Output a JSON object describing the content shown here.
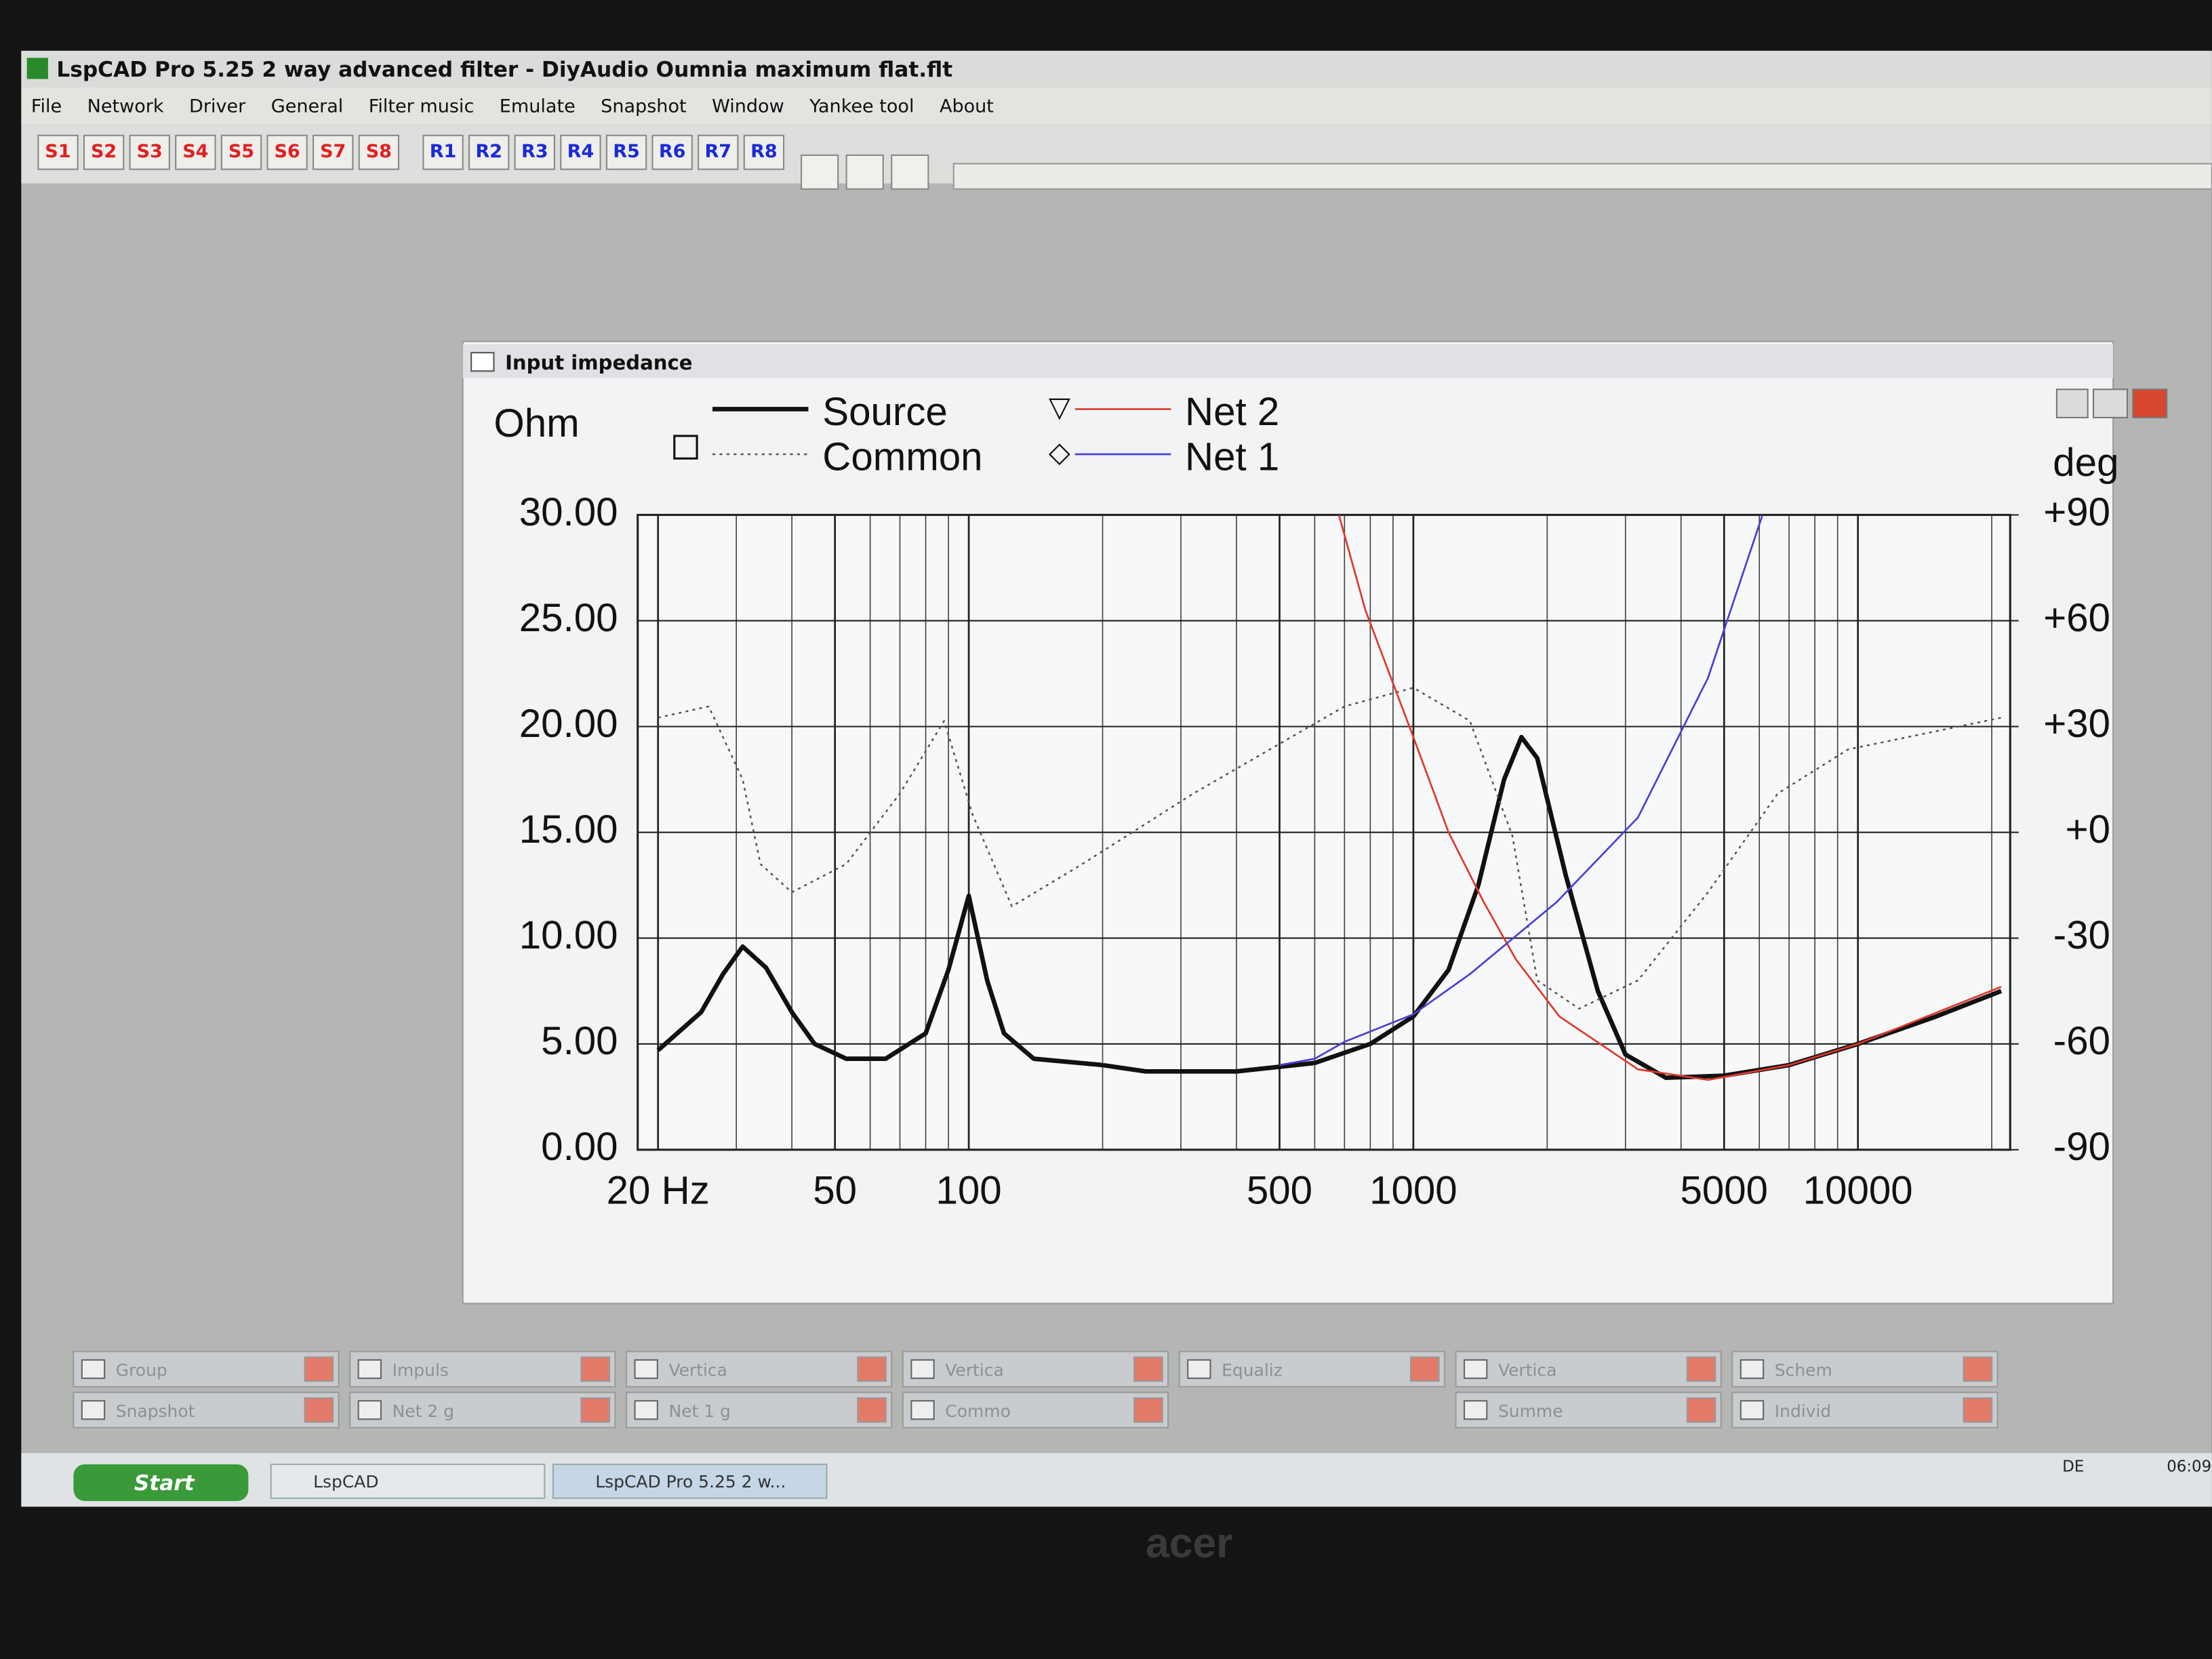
{
  "window": {
    "title": "LspCAD Pro 5.25 2 way advanced filter - DiyAudio Oumnia maximum flat.flt",
    "menu": [
      "File",
      "Network",
      "Driver",
      "General",
      "Filter music",
      "Emulate",
      "Snapshot",
      "Window",
      "Yankee tool",
      "About"
    ],
    "toolbar_s": [
      "S1",
      "S2",
      "S3",
      "S4",
      "S5",
      "S6",
      "S7",
      "S8"
    ],
    "toolbar_r": [
      "R1",
      "R2",
      "R3",
      "R4",
      "R5",
      "R6",
      "R7",
      "R8"
    ]
  },
  "child_window": {
    "title": "Input impedance"
  },
  "chart_data": {
    "type": "line",
    "ylabel": "Ohm",
    "y2label": "deg",
    "log_x": true,
    "grid": true,
    "xlim": [
      18,
      22000
    ],
    "xticks": [
      {
        "value": 20,
        "label": "20 Hz"
      },
      50,
      100,
      500,
      1000,
      5000,
      10000
    ],
    "xminor": [
      30,
      40,
      60,
      70,
      80,
      90,
      200,
      300,
      400,
      600,
      700,
      800,
      900,
      2000,
      3000,
      4000,
      6000,
      7000,
      8000,
      9000,
      20000
    ],
    "ylim": [
      0,
      30
    ],
    "yticks": [
      {
        "value": 0,
        "label": "0.00"
      },
      {
        "value": 5,
        "label": "5.00"
      },
      {
        "value": 10,
        "label": "10.00"
      },
      {
        "value": 15,
        "label": "15.00"
      },
      {
        "value": 20,
        "label": "20.00"
      },
      {
        "value": 25,
        "label": "25.00"
      },
      {
        "value": 30,
        "label": "30.00"
      }
    ],
    "y2lim": [
      -90,
      90
    ],
    "y2ticks": [
      -90,
      -60,
      -30,
      {
        "value": 0,
        "label": "+0"
      },
      {
        "value": 30,
        "label": "+30"
      },
      {
        "value": 60,
        "label": "+60"
      },
      {
        "value": 90,
        "label": "+90"
      }
    ],
    "series": [
      {
        "name": "Source",
        "color": "#111111",
        "style": "thick",
        "x": [
          20,
          25,
          28,
          31,
          35,
          40,
          45,
          53,
          65,
          80,
          90,
          100,
          110,
          120,
          140,
          200,
          250,
          400,
          600,
          800,
          1000,
          1200,
          1400,
          1600,
          1750,
          1900,
          2200,
          2600,
          3000,
          3700,
          5000,
          7000,
          10000,
          15000,
          21000
        ],
        "values": [
          4.7,
          6.5,
          8.3,
          9.6,
          8.6,
          6.5,
          5.0,
          4.3,
          4.3,
          5.5,
          8.5,
          12,
          8,
          5.5,
          4.3,
          4.0,
          3.7,
          3.7,
          4.1,
          5.0,
          6.3,
          8.5,
          12.5,
          17.5,
          19.5,
          18.5,
          13,
          7.5,
          4.5,
          3.4,
          3.5,
          4.0,
          5.0,
          6.3,
          7.5
        ]
      },
      {
        "name": "Common",
        "color": "#555555",
        "style": "dotted",
        "axis": "y2",
        "x": [
          20,
          26,
          31,
          34,
          40,
          53,
          70,
          88,
          102,
          125,
          180,
          320,
          700,
          1000,
          1340,
          1670,
          1900,
          2360,
          3200,
          4600,
          6600,
          9500,
          21000
        ],
        "values": [
          32.5,
          35.7,
          15,
          -9,
          -17,
          -9,
          11,
          31.6,
          5,
          -21,
          -9,
          11,
          35.7,
          41,
          31.6,
          -1,
          -42,
          -50,
          -42,
          -17,
          11,
          23.5,
          32.5
        ]
      },
      {
        "name": "Net 2",
        "color": "#e0392b",
        "style": "solid",
        "marker": "▽",
        "x": [
          680,
          780,
          1000,
          1200,
          1440,
          1700,
          2130,
          3200,
          4600,
          7000,
          10000,
          21000
        ],
        "values": [
          30,
          25.5,
          19.5,
          15,
          11.7,
          9,
          6.3,
          3.8,
          3.3,
          4.0,
          5.0,
          7.7
        ]
      },
      {
        "name": "Net 1",
        "color": "#4a3fd8",
        "style": "solid",
        "marker": "◇",
        "x": [
          500,
          600,
          700,
          1000,
          1340,
          2100,
          3200,
          4600,
          6100
        ],
        "values": [
          4.0,
          4.3,
          5.1,
          6.4,
          8.3,
          11.7,
          15.7,
          22.3,
          30
        ]
      }
    ]
  },
  "minimized_windows": [
    [
      "Group",
      "Impuls",
      "Vertica",
      "Vertica",
      "Equaliz",
      "Vertica",
      "Schem"
    ],
    [
      "Snapshot",
      "Net 2 g",
      "Net 1 g",
      "Commo",
      "Summe",
      "Individ"
    ]
  ],
  "taskbar": {
    "start": "Start",
    "items": [
      "LspCAD",
      "LspCAD Pro 5.25 2 w..."
    ],
    "language": "DE",
    "clock": "06:09"
  },
  "monitor": {
    "brand": "acer"
  }
}
